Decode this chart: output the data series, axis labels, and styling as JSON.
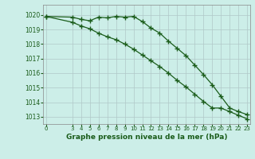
{
  "title": "Graphe pression niveau de la mer (hPa)",
  "background_color": "#cceee8",
  "grid_color": "#b0c8c8",
  "line_color": "#1a5c1a",
  "x_ticks": [
    0,
    3,
    4,
    5,
    6,
    7,
    8,
    9,
    10,
    11,
    12,
    13,
    14,
    15,
    16,
    17,
    18,
    19,
    20,
    21,
    22,
    23
  ],
  "xlim": [
    -0.3,
    23.3
  ],
  "ylim": [
    1012.5,
    1020.7
  ],
  "y_ticks": [
    1013,
    1014,
    1015,
    1016,
    1017,
    1018,
    1019,
    1020
  ],
  "series1_x": [
    0,
    3,
    4,
    5,
    6,
    7,
    8,
    9,
    10,
    11,
    12,
    13,
    14,
    15,
    16,
    17,
    18,
    19,
    20,
    21,
    22,
    23
  ],
  "series1_y": [
    1019.9,
    1019.85,
    1019.7,
    1019.6,
    1019.85,
    1019.8,
    1019.9,
    1019.85,
    1019.9,
    1019.55,
    1019.1,
    1018.75,
    1018.2,
    1017.7,
    1017.2,
    1016.55,
    1015.9,
    1015.2,
    1014.4,
    1013.6,
    1013.35,
    1013.15
  ],
  "series2_x": [
    0,
    3,
    4,
    5,
    6,
    7,
    8,
    9,
    10,
    11,
    12,
    13,
    14,
    15,
    16,
    17,
    18,
    19,
    20,
    21,
    22,
    23
  ],
  "series2_y": [
    1019.9,
    1019.5,
    1019.25,
    1019.05,
    1018.75,
    1018.5,
    1018.3,
    1018.0,
    1017.65,
    1017.25,
    1016.85,
    1016.45,
    1016.0,
    1015.5,
    1015.05,
    1014.55,
    1014.05,
    1013.6,
    1013.6,
    1013.35,
    1013.1,
    1012.85
  ],
  "ylabel_fontsize": 5.5,
  "xlabel_fontsize": 6.5,
  "tick_fontsize": 5.0
}
